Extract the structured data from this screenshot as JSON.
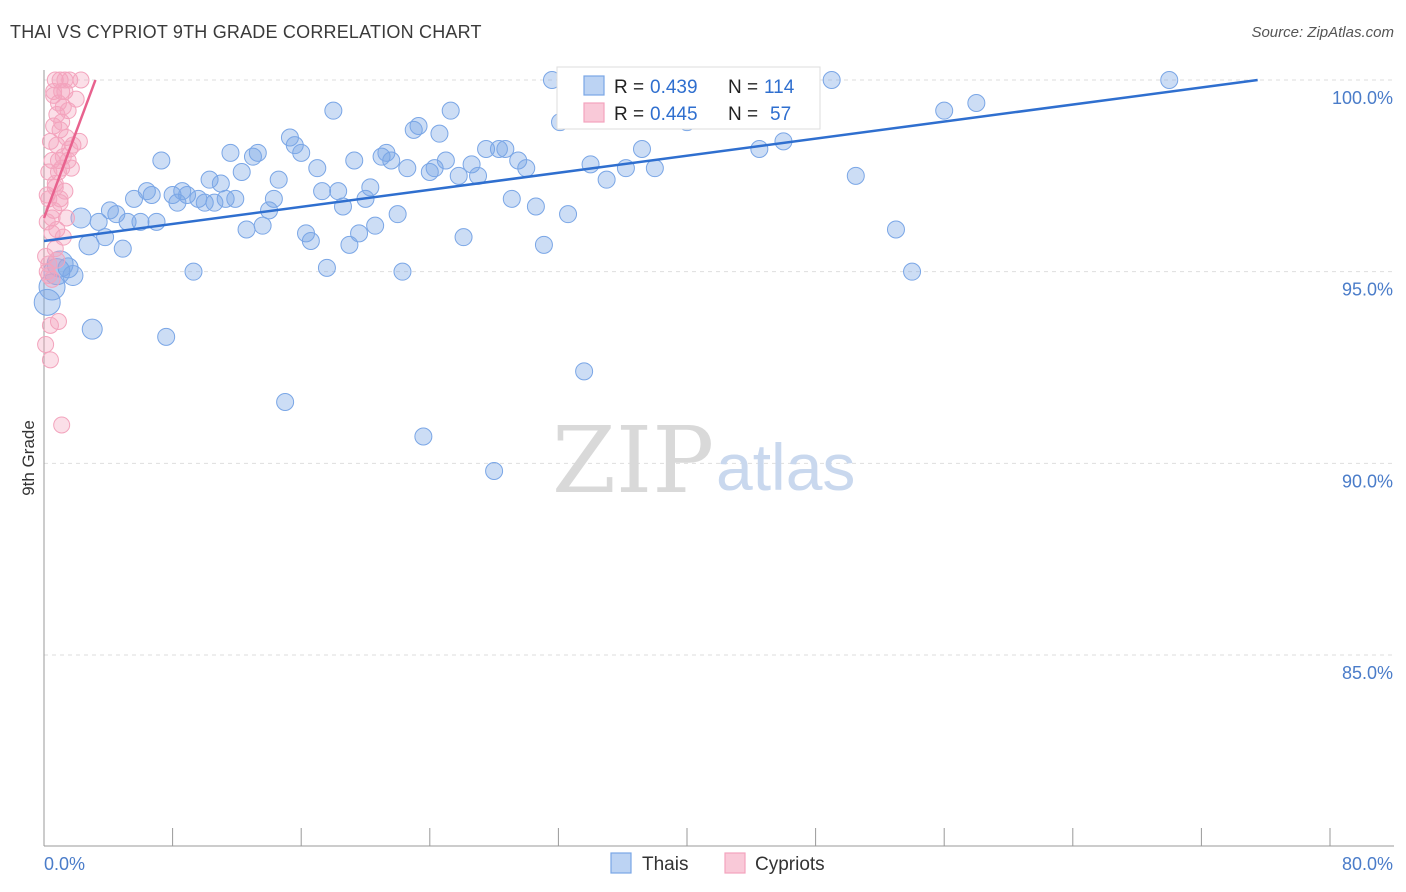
{
  "title": "THAI VS CYPRIOT 9TH GRADE CORRELATION CHART",
  "source": "Source: ZipAtlas.com",
  "watermark": {
    "zip": "ZIP",
    "atlas": "atlas"
  },
  "colors": {
    "thais": "#7aa6e6",
    "thais_line": "#2f6fcf",
    "cypriots": "#f3a4bd",
    "cypriots_line": "#e8628e",
    "tick_text": "#4a7cc9"
  },
  "legend_top": [
    {
      "r_label": "R =",
      "r_value": "0.439",
      "n_label": "N =",
      "n_value": "114"
    },
    {
      "r_label": "R =",
      "r_value": "0.445",
      "n_label": "N =",
      "n_value": "57"
    }
  ],
  "chart_data": {
    "type": "scatter",
    "title": "THAI VS CYPRIOT 9TH GRADE CORRELATION CHART",
    "xlabel": "",
    "ylabel": "9th Grade",
    "xlim": [
      0,
      80
    ],
    "ylim": [
      80.3,
      100.9
    ],
    "x_tick_labels": [
      "0.0%",
      "80.0%"
    ],
    "y_ticks": [
      85,
      90,
      95,
      100
    ],
    "y_tick_labels": [
      "85.0%",
      "90.0%",
      "95.0%",
      "100.0%"
    ],
    "legend": [
      "Thais",
      "Cypriots"
    ],
    "series": [
      {
        "name": "Thais",
        "trend": {
          "x": [
            0,
            75.5
          ],
          "y": [
            95.8,
            100.0
          ]
        },
        "points": [
          [
            0.2,
            94.2
          ],
          [
            0.5,
            94.6
          ],
          [
            0.8,
            95.0
          ],
          [
            1.0,
            95.2
          ],
          [
            1.5,
            95.1
          ],
          [
            1.8,
            94.9
          ],
          [
            2.3,
            96.4
          ],
          [
            2.8,
            95.7
          ],
          [
            3.0,
            93.5
          ],
          [
            3.4,
            96.3
          ],
          [
            3.8,
            95.9
          ],
          [
            4.1,
            96.6
          ],
          [
            4.5,
            96.5
          ],
          [
            4.9,
            95.6
          ],
          [
            5.2,
            96.3
          ],
          [
            5.6,
            96.9
          ],
          [
            6.0,
            96.3
          ],
          [
            6.4,
            97.1
          ],
          [
            6.7,
            97.0
          ],
          [
            7.0,
            96.3
          ],
          [
            7.3,
            97.9
          ],
          [
            7.6,
            93.3
          ],
          [
            8.0,
            97.0
          ],
          [
            8.3,
            96.8
          ],
          [
            8.6,
            97.1
          ],
          [
            8.9,
            97.0
          ],
          [
            9.3,
            95.0
          ],
          [
            9.6,
            96.9
          ],
          [
            10.0,
            96.8
          ],
          [
            10.3,
            97.4
          ],
          [
            10.6,
            96.8
          ],
          [
            11.0,
            97.3
          ],
          [
            11.3,
            96.9
          ],
          [
            11.6,
            98.1
          ],
          [
            11.9,
            96.9
          ],
          [
            12.3,
            97.6
          ],
          [
            12.6,
            96.1
          ],
          [
            13.0,
            98.0
          ],
          [
            13.3,
            98.1
          ],
          [
            13.6,
            96.2
          ],
          [
            14.0,
            96.6
          ],
          [
            14.3,
            96.9
          ],
          [
            14.6,
            97.4
          ],
          [
            15.0,
            91.6
          ],
          [
            15.3,
            98.5
          ],
          [
            15.6,
            98.3
          ],
          [
            16.0,
            98.1
          ],
          [
            16.3,
            96.0
          ],
          [
            16.6,
            95.8
          ],
          [
            17.0,
            97.7
          ],
          [
            17.3,
            97.1
          ],
          [
            17.6,
            95.1
          ],
          [
            18.0,
            99.2
          ],
          [
            18.3,
            97.1
          ],
          [
            18.6,
            96.7
          ],
          [
            19.0,
            95.7
          ],
          [
            19.3,
            97.9
          ],
          [
            19.6,
            96.0
          ],
          [
            20.0,
            96.9
          ],
          [
            20.3,
            97.2
          ],
          [
            20.6,
            96.2
          ],
          [
            21.0,
            98.0
          ],
          [
            21.3,
            98.1
          ],
          [
            21.6,
            97.9
          ],
          [
            22.0,
            96.5
          ],
          [
            22.3,
            95.0
          ],
          [
            22.6,
            97.7
          ],
          [
            23.0,
            98.7
          ],
          [
            23.3,
            98.8
          ],
          [
            23.6,
            90.7
          ],
          [
            24.0,
            97.6
          ],
          [
            24.3,
            97.7
          ],
          [
            24.6,
            98.6
          ],
          [
            25.0,
            97.9
          ],
          [
            25.3,
            99.2
          ],
          [
            25.8,
            97.5
          ],
          [
            26.1,
            95.9
          ],
          [
            26.6,
            97.8
          ],
          [
            27.0,
            97.5
          ],
          [
            27.5,
            98.2
          ],
          [
            28.0,
            89.8
          ],
          [
            28.3,
            98.2
          ],
          [
            28.7,
            98.2
          ],
          [
            29.1,
            96.9
          ],
          [
            29.5,
            97.9
          ],
          [
            30.0,
            97.7
          ],
          [
            30.6,
            96.7
          ],
          [
            31.1,
            95.7
          ],
          [
            31.6,
            100.0
          ],
          [
            32.1,
            98.9
          ],
          [
            32.6,
            96.5
          ],
          [
            33.0,
            100.0
          ],
          [
            33.6,
            92.4
          ],
          [
            34.0,
            97.8
          ],
          [
            34.6,
            99.0
          ],
          [
            35.0,
            97.4
          ],
          [
            35.6,
            99.6
          ],
          [
            36.2,
            97.7
          ],
          [
            37.2,
            98.2
          ],
          [
            38.0,
            97.7
          ],
          [
            38.5,
            99.9
          ],
          [
            40.0,
            98.9
          ],
          [
            41.0,
            99.9
          ],
          [
            43.0,
            99.6
          ],
          [
            44.5,
            98.2
          ],
          [
            46.0,
            98.4
          ],
          [
            47.0,
            99.0
          ],
          [
            49.0,
            100.0
          ],
          [
            50.5,
            97.5
          ],
          [
            53.0,
            96.1
          ],
          [
            54.0,
            95.0
          ],
          [
            56.0,
            99.2
          ],
          [
            58.0,
            99.4
          ],
          [
            70.0,
            100.0
          ]
        ]
      },
      {
        "name": "Cypriots",
        "trend": {
          "x": [
            0,
            3.2
          ],
          "y": [
            96.4,
            100.0
          ]
        },
        "points": [
          [
            0.1,
            93.1
          ],
          [
            0.1,
            95.4
          ],
          [
            0.2,
            96.3
          ],
          [
            0.2,
            97.0
          ],
          [
            0.2,
            95.0
          ],
          [
            0.3,
            97.6
          ],
          [
            0.3,
            95.2
          ],
          [
            0.3,
            96.9
          ],
          [
            0.4,
            93.6
          ],
          [
            0.4,
            98.4
          ],
          [
            0.4,
            92.7
          ],
          [
            0.5,
            96.0
          ],
          [
            0.5,
            97.9
          ],
          [
            0.5,
            94.8
          ],
          [
            0.6,
            98.8
          ],
          [
            0.6,
            96.6
          ],
          [
            0.6,
            99.6
          ],
          [
            0.7,
            97.3
          ],
          [
            0.7,
            95.6
          ],
          [
            0.7,
            100.0
          ],
          [
            0.8,
            98.3
          ],
          [
            0.8,
            99.1
          ],
          [
            0.8,
            96.1
          ],
          [
            0.9,
            97.6
          ],
          [
            0.9,
            93.7
          ],
          [
            0.9,
            99.4
          ],
          [
            1.0,
            98.7
          ],
          [
            1.0,
            96.8
          ],
          [
            1.0,
            100.0
          ],
          [
            1.1,
            91.0
          ],
          [
            1.1,
            97.7
          ],
          [
            1.1,
            99.7
          ],
          [
            1.2,
            95.9
          ],
          [
            1.2,
            98.0
          ],
          [
            1.2,
            99.3
          ],
          [
            1.3,
            97.1
          ],
          [
            1.3,
            99.7
          ],
          [
            1.4,
            98.5
          ],
          [
            1.4,
            96.4
          ],
          [
            1.5,
            99.2
          ],
          [
            1.5,
            97.9
          ],
          [
            1.6,
            98.2
          ],
          [
            1.6,
            100.0
          ],
          [
            1.7,
            97.7
          ],
          [
            1.8,
            98.3
          ],
          [
            2.0,
            99.5
          ],
          [
            2.2,
            98.4
          ],
          [
            2.3,
            100.0
          ],
          [
            0.3,
            94.9
          ],
          [
            0.5,
            96.4
          ],
          [
            0.7,
            97.2
          ],
          [
            0.9,
            97.9
          ],
          [
            1.0,
            96.9
          ],
          [
            1.1,
            98.9
          ],
          [
            0.6,
            99.7
          ],
          [
            0.8,
            95.3
          ],
          [
            1.3,
            100.0
          ]
        ]
      }
    ]
  },
  "legend_bottom": [
    {
      "label": "Thais"
    },
    {
      "label": "Cypriots"
    }
  ]
}
